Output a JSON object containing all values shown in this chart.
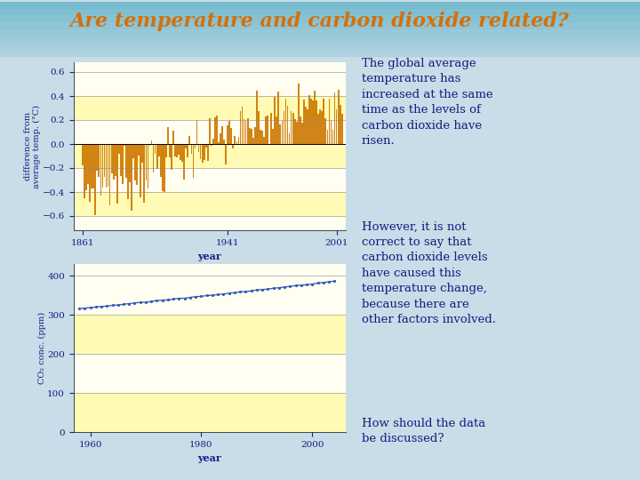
{
  "title": "Are temperature and carbon dioxide related?",
  "title_color": "#D4700A",
  "title_fontsize": 16,
  "slide_bg": "#C8DDE8",
  "temp_ylabel": "difference from\naverage temp. (°C)",
  "temp_xlabel": "year",
  "temp_ylim": [
    -0.72,
    0.68
  ],
  "temp_yticks": [
    -0.6,
    -0.4,
    -0.2,
    0,
    0.2,
    0.4,
    0.6
  ],
  "temp_xticks": [
    1861,
    1941,
    2001
  ],
  "temp_xlim": [
    1856,
    2006
  ],
  "temp_bar_color": "#CC7700",
  "temp_chart_bg": "#FFFFF0",
  "co2_ylabel": "CO₂ conc. (ppm)",
  "co2_xlabel": "year",
  "co2_ylim": [
    0,
    430
  ],
  "co2_yticks": [
    0,
    100,
    200,
    300,
    400
  ],
  "co2_xticks": [
    1960,
    1980,
    2000
  ],
  "co2_xlim": [
    1957,
    2006
  ],
  "co2_line_color": "#3355BB",
  "co2_chart_bg": "#FFFFF0",
  "yellow_band_color": "#FFFAAA",
  "text_paragraphs": [
    "The global average\ntemperature has\nincreased at the same\ntime as the levels of\ncarbon dioxide have\nrisen.",
    "However, it is not\ncorrect to say that\ncarbon dioxide levels\nhave caused this\ntemperature change,\nbecause there are\nother factors involved.",
    "How should the data\nbe discussed?"
  ],
  "text_color": "#1A1A80",
  "text_fontsize": 9.5,
  "grid_color": "#888888",
  "axis_label_color": "#1A1A80",
  "tick_label_color": "#1A1A80"
}
